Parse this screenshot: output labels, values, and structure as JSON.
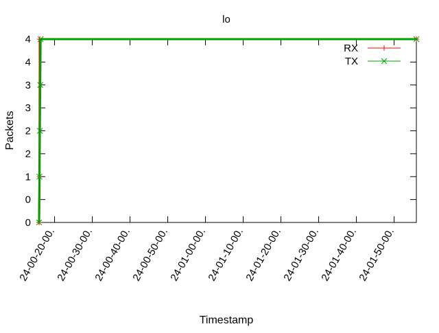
{
  "chart_data": {
    "type": "line",
    "title": "lo",
    "xlabel": "Timestamp",
    "ylabel": "Packets",
    "grid": false,
    "legend_position": "top-right",
    "x_unit": "minutes",
    "xlim": [
      15.9,
      115.9
    ],
    "ylim": [
      0,
      4
    ],
    "x_ticks": [
      {
        "value": 20,
        "label": "24-00-20-00."
      },
      {
        "value": 30,
        "label": "24-00-30-00."
      },
      {
        "value": 40,
        "label": "24-00-40-00."
      },
      {
        "value": 50,
        "label": "24-00-50-00."
      },
      {
        "value": 60,
        "label": "24-01-00-00."
      },
      {
        "value": 70,
        "label": "24-01-10-00."
      },
      {
        "value": 80,
        "label": "24-01-20-00."
      },
      {
        "value": 90,
        "label": "24-01-30-00."
      },
      {
        "value": 100,
        "label": "24-01-40-00."
      },
      {
        "value": 110,
        "label": "24-01-50-00."
      }
    ],
    "y_ticks": [
      {
        "value": 0,
        "label": "0"
      },
      {
        "value": 0.5,
        "label": "0"
      },
      {
        "value": 1,
        "label": "1"
      },
      {
        "value": 1.5,
        "label": "2"
      },
      {
        "value": 2,
        "label": "2"
      },
      {
        "value": 2.5,
        "label": "3"
      },
      {
        "value": 3,
        "label": "3"
      },
      {
        "value": 3.5,
        "label": "4"
      },
      {
        "value": 4,
        "label": "4"
      }
    ],
    "series": [
      {
        "name": "RX",
        "color": "#ff0000",
        "marker": "plus",
        "points": [
          [
            15.9,
            0
          ],
          [
            16.0,
            1
          ],
          [
            16.1,
            4
          ],
          [
            115.9,
            4
          ]
        ]
      },
      {
        "name": "TX",
        "color": "#00a000",
        "marker": "x",
        "points": [
          [
            15.9,
            0
          ],
          [
            16.0,
            1
          ],
          [
            16.1,
            2
          ],
          [
            16.2,
            3
          ],
          [
            16.3,
            4
          ],
          [
            115.9,
            4
          ]
        ]
      }
    ]
  }
}
